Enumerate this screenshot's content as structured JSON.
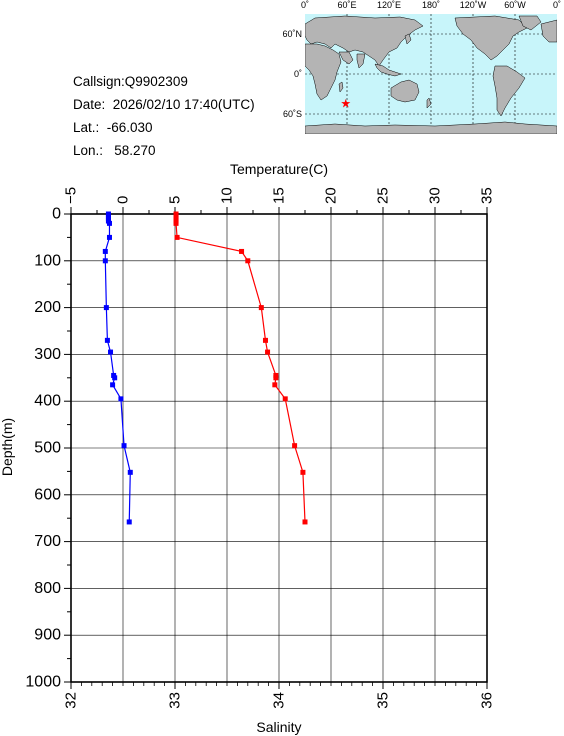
{
  "station": {
    "callsign_line": "Callsign:Q9902309",
    "date_line": "Date:  2026/02/10 17:40(UTC)",
    "lat_line": "Lat.:  -66.030",
    "lon_line": "Lon.:   58.270"
  },
  "map": {
    "lon_ticks": [
      "0˚",
      "60˚E",
      "120˚E",
      "180˚",
      "120˚W",
      "60˚W",
      "0˚"
    ],
    "lat_ticks": [
      "60˚N",
      "0˚",
      "60˚S"
    ],
    "marker_lon": 58.27,
    "marker_lat": -66.03,
    "ocean_color": "#c8f5fa",
    "land_color": "#b4b4b4",
    "marker_color": "#ff0000"
  },
  "chart_data": {
    "type": "line",
    "top_axis_label": "Temperature(C)",
    "top_axis_ticks": [
      "−5",
      "0",
      "5",
      "10",
      "15",
      "20",
      "25",
      "30",
      "35"
    ],
    "top_axis_range": [
      -5,
      35
    ],
    "bottom_axis_label": "Salinity",
    "bottom_axis_ticks": [
      "32",
      "33",
      "34",
      "35",
      "36"
    ],
    "bottom_axis_range": [
      32,
      36
    ],
    "y_axis_label": "Depth(m)",
    "y_axis_ticks": [
      "0",
      "100",
      "200",
      "300",
      "400",
      "500",
      "600",
      "700",
      "800",
      "900",
      "1000"
    ],
    "y_axis_range": [
      0,
      1000
    ],
    "grid": true,
    "series": [
      {
        "axis": "temperature",
        "color": "#0000ff",
        "points": [
          [
            -1.4,
            0
          ],
          [
            -1.4,
            5
          ],
          [
            -1.4,
            10
          ],
          [
            -1.4,
            15
          ],
          [
            -1.3,
            20
          ],
          [
            -1.3,
            50
          ],
          [
            -1.7,
            80
          ],
          [
            -1.7,
            100
          ],
          [
            -1.6,
            200
          ],
          [
            -1.5,
            270
          ],
          [
            -1.2,
            295
          ],
          [
            -0.9,
            345
          ],
          [
            -0.8,
            350
          ],
          [
            -1.0,
            365
          ],
          [
            -0.2,
            395
          ],
          [
            0.1,
            495
          ],
          [
            0.7,
            552
          ],
          [
            0.6,
            658
          ]
        ]
      },
      {
        "axis": "salinity",
        "color": "#ff0000",
        "points": [
          [
            33.01,
            0
          ],
          [
            33.01,
            5
          ],
          [
            33.01,
            10
          ],
          [
            33.01,
            15
          ],
          [
            33.01,
            20
          ],
          [
            33.02,
            50
          ],
          [
            33.64,
            80
          ],
          [
            33.7,
            100
          ],
          [
            33.83,
            200
          ],
          [
            33.87,
            270
          ],
          [
            33.89,
            295
          ],
          [
            33.97,
            345
          ],
          [
            33.97,
            350
          ],
          [
            33.96,
            365
          ],
          [
            34.06,
            395
          ],
          [
            34.15,
            495
          ],
          [
            34.23,
            552
          ],
          [
            34.25,
            658
          ]
        ]
      }
    ]
  }
}
